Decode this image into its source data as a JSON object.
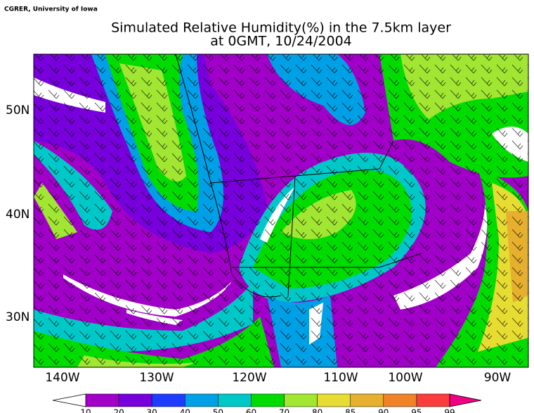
{
  "header": {
    "credit": "CGRER, University of Iowa",
    "title": "Simulated Relative Humidity(%) in the 7.5km layer",
    "subtitle": "at 0GMT, 10/24/2004"
  },
  "map": {
    "lat_labels": [
      "50N",
      "40N",
      "30N"
    ],
    "lon_labels": [
      "140W",
      "130W",
      "120W",
      "110W",
      "100W",
      "90W"
    ]
  },
  "colorbar": {
    "levels": [
      10,
      20,
      30,
      40,
      50,
      60,
      70,
      80,
      85,
      90,
      95,
      99
    ],
    "colors": [
      "#ffffff",
      "#a000c8",
      "#7800dc",
      "#1e3cff",
      "#00a0e6",
      "#00c8c8",
      "#00dc00",
      "#a0e632",
      "#e6dc32",
      "#e6af2d",
      "#f08228",
      "#fa3c3c",
      "#f00082"
    ]
  }
}
